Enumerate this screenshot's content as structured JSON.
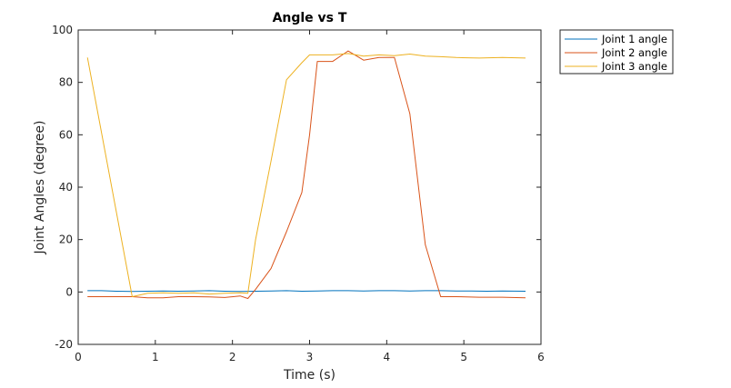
{
  "chart_data": {
    "type": "line",
    "title": "Angle vs T",
    "xlabel": "Time (s)",
    "ylabel": "Joint Angles (degree)",
    "xlim": [
      0,
      6
    ],
    "ylim": [
      -20,
      100
    ],
    "xticks": [
      0,
      1,
      2,
      3,
      4,
      5,
      6
    ],
    "yticks": [
      -20,
      0,
      20,
      40,
      60,
      80,
      100
    ],
    "grid": false,
    "legend_position": "outside-top-right",
    "series": [
      {
        "name": "Joint 1 angle",
        "color": "#0072BD",
        "x": [
          0.12,
          0.3,
          0.5,
          0.7,
          0.9,
          1.1,
          1.3,
          1.5,
          1.7,
          1.9,
          2.1,
          2.3,
          2.5,
          2.7,
          2.9,
          3.1,
          3.3,
          3.5,
          3.7,
          3.9,
          4.1,
          4.3,
          4.5,
          4.7,
          4.9,
          5.1,
          5.3,
          5.5,
          5.8
        ],
        "y": [
          0.5,
          0.5,
          0.3,
          0.2,
          0.3,
          0.4,
          0.3,
          0.4,
          0.5,
          0.3,
          0.2,
          0.3,
          0.4,
          0.5,
          0.3,
          0.4,
          0.5,
          0.5,
          0.4,
          0.5,
          0.5,
          0.4,
          0.5,
          0.5,
          0.4,
          0.4,
          0.3,
          0.4,
          0.3
        ]
      },
      {
        "name": "Joint 2 angle",
        "color": "#D95319",
        "x": [
          0.12,
          0.7,
          0.9,
          1.1,
          1.3,
          1.5,
          1.7,
          1.9,
          2.1,
          2.2,
          2.3,
          2.5,
          2.7,
          2.9,
          3.0,
          3.1,
          3.3,
          3.5,
          3.7,
          3.9,
          4.1,
          4.3,
          4.5,
          4.7,
          4.9,
          5.2,
          5.5,
          5.8
        ],
        "y": [
          -1.8,
          -1.8,
          -2.2,
          -2.2,
          -1.8,
          -1.8,
          -1.9,
          -2.1,
          -1.5,
          -2.5,
          1,
          9,
          23,
          38,
          60,
          88,
          88,
          92,
          88.5,
          89.5,
          89.5,
          68,
          18,
          -1.8,
          -1.8,
          -2,
          -2,
          -2.2
        ]
      },
      {
        "name": "Joint 3 angle",
        "color": "#EDB120",
        "x": [
          0.12,
          0.7,
          0.9,
          1.1,
          1.3,
          1.5,
          1.7,
          1.9,
          2.1,
          2.2,
          2.3,
          2.5,
          2.7,
          2.9,
          3.0,
          3.1,
          3.3,
          3.5,
          3.7,
          3.9,
          4.1,
          4.3,
          4.5,
          4.7,
          4.9,
          5.2,
          5.5,
          5.8
        ],
        "y": [
          89.5,
          -1.8,
          -0.5,
          -0.3,
          -0.5,
          -0.3,
          -0.8,
          -0.5,
          -0.3,
          -0.5,
          20,
          50,
          81,
          87.5,
          90.5,
          90.5,
          90.5,
          91,
          90,
          90.5,
          90.2,
          90.8,
          90,
          89.8,
          89.5,
          89.3,
          89.5,
          89.3
        ]
      }
    ]
  }
}
